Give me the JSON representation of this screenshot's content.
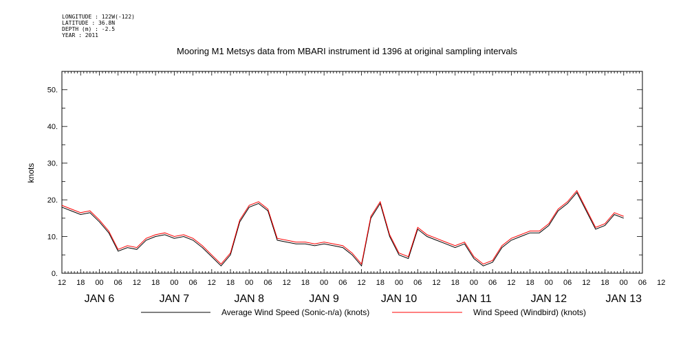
{
  "header": {
    "longitude": "LONGITUDE : 122W(-122)",
    "latitude": "LATITUDE : 36.8N",
    "depth": "DEPTH (m) : -2.5",
    "year": "YEAR : 2011"
  },
  "chart_data": {
    "type": "line",
    "title": "Mooring M1 Metsys data from MBARI instrument id 1396 at original sampling intervals",
    "xlabel": "",
    "ylabel": "knots",
    "ylim": [
      0,
      55
    ],
    "xlim_hours_from_jan6_00": [
      -12,
      174
    ],
    "y_ticks": [
      "0.",
      "10.",
      "20.",
      "30.",
      "40.",
      "50."
    ],
    "x_hour_ticks": [
      "12",
      "18",
      "00",
      "06",
      "12",
      "18",
      "00",
      "06",
      "12",
      "18",
      "00",
      "06",
      "12",
      "18",
      "00",
      "06",
      "12",
      "18",
      "00",
      "06",
      "12",
      "18",
      "00",
      "06",
      "12",
      "18",
      "00",
      "06",
      "12",
      "18",
      "00",
      "06",
      "12"
    ],
    "x_day_labels": [
      "JAN 6",
      "JAN 7",
      "JAN 8",
      "JAN 9",
      "JAN 10",
      "JAN 11",
      "JAN 12",
      "JAN 13"
    ],
    "grid": false,
    "legend": "bottom",
    "series": [
      {
        "name": "Average Wind Speed (Sonic-n/a) (knots)",
        "color": "#000000",
        "points": [
          [
            -12,
            18
          ],
          [
            -9,
            17
          ],
          [
            -6,
            16
          ],
          [
            -3,
            16.5
          ],
          [
            0,
            14
          ],
          [
            3,
            11
          ],
          [
            6,
            6
          ],
          [
            9,
            7
          ],
          [
            12,
            6.5
          ],
          [
            15,
            9
          ],
          [
            18,
            10
          ],
          [
            21,
            10.5
          ],
          [
            24,
            9.5
          ],
          [
            27,
            10
          ],
          [
            30,
            9
          ],
          [
            33,
            7
          ],
          [
            36,
            4.5
          ],
          [
            39,
            2
          ],
          [
            42,
            5
          ],
          [
            45,
            14
          ],
          [
            48,
            18
          ],
          [
            51,
            19
          ],
          [
            54,
            17
          ],
          [
            57,
            9
          ],
          [
            60,
            8.5
          ],
          [
            63,
            8
          ],
          [
            66,
            8
          ],
          [
            69,
            7.5
          ],
          [
            72,
            8
          ],
          [
            75,
            7.5
          ],
          [
            78,
            7
          ],
          [
            81,
            5
          ],
          [
            84,
            2
          ],
          [
            87,
            15
          ],
          [
            90,
            19
          ],
          [
            93,
            10
          ],
          [
            96,
            5
          ],
          [
            99,
            4
          ],
          [
            102,
            12
          ],
          [
            105,
            10
          ],
          [
            108,
            9
          ],
          [
            111,
            8
          ],
          [
            114,
            7
          ],
          [
            117,
            8
          ],
          [
            120,
            4
          ],
          [
            123,
            2
          ],
          [
            126,
            3
          ],
          [
            129,
            7
          ],
          [
            132,
            9
          ],
          [
            135,
            10
          ],
          [
            138,
            11
          ],
          [
            141,
            11
          ],
          [
            144,
            13
          ],
          [
            147,
            17
          ],
          [
            150,
            19
          ],
          [
            153,
            22
          ],
          [
            156,
            17
          ],
          [
            159,
            12
          ],
          [
            162,
            13
          ],
          [
            165,
            16
          ],
          [
            168,
            15
          ]
        ]
      },
      {
        "name": "Wind Speed (Windbird) (knots)",
        "color": "#ff0000",
        "points": [
          [
            -12,
            18.5
          ],
          [
            -9,
            17.5
          ],
          [
            -6,
            16.5
          ],
          [
            -3,
            17
          ],
          [
            0,
            14.5
          ],
          [
            3,
            11.5
          ],
          [
            6,
            6.5
          ],
          [
            9,
            7.5
          ],
          [
            12,
            7
          ],
          [
            15,
            9.5
          ],
          [
            18,
            10.5
          ],
          [
            21,
            11
          ],
          [
            24,
            10
          ],
          [
            27,
            10.5
          ],
          [
            30,
            9.5
          ],
          [
            33,
            7.5
          ],
          [
            36,
            5
          ],
          [
            39,
            2.5
          ],
          [
            42,
            5.5
          ],
          [
            45,
            14.5
          ],
          [
            48,
            18.5
          ],
          [
            51,
            19.5
          ],
          [
            54,
            17.5
          ],
          [
            57,
            9.5
          ],
          [
            60,
            9
          ],
          [
            63,
            8.5
          ],
          [
            66,
            8.5
          ],
          [
            69,
            8
          ],
          [
            72,
            8.5
          ],
          [
            75,
            8
          ],
          [
            78,
            7.5
          ],
          [
            81,
            5.5
          ],
          [
            84,
            2.5
          ],
          [
            87,
            15.5
          ],
          [
            90,
            19.5
          ],
          [
            93,
            10.5
          ],
          [
            96,
            5.5
          ],
          [
            99,
            4.5
          ],
          [
            102,
            12.5
          ],
          [
            105,
            10.5
          ],
          [
            108,
            9.5
          ],
          [
            111,
            8.5
          ],
          [
            114,
            7.5
          ],
          [
            117,
            8.5
          ],
          [
            120,
            4.5
          ],
          [
            123,
            2.5
          ],
          [
            126,
            3.5
          ],
          [
            129,
            7.5
          ],
          [
            132,
            9.5
          ],
          [
            135,
            10.5
          ],
          [
            138,
            11.5
          ],
          [
            141,
            11.5
          ],
          [
            144,
            13.5
          ],
          [
            147,
            17.5
          ],
          [
            150,
            19.5
          ],
          [
            153,
            22.5
          ],
          [
            156,
            17.5
          ],
          [
            159,
            12.5
          ],
          [
            162,
            13.5
          ],
          [
            165,
            16.5
          ],
          [
            168,
            15.5
          ]
        ]
      }
    ]
  }
}
